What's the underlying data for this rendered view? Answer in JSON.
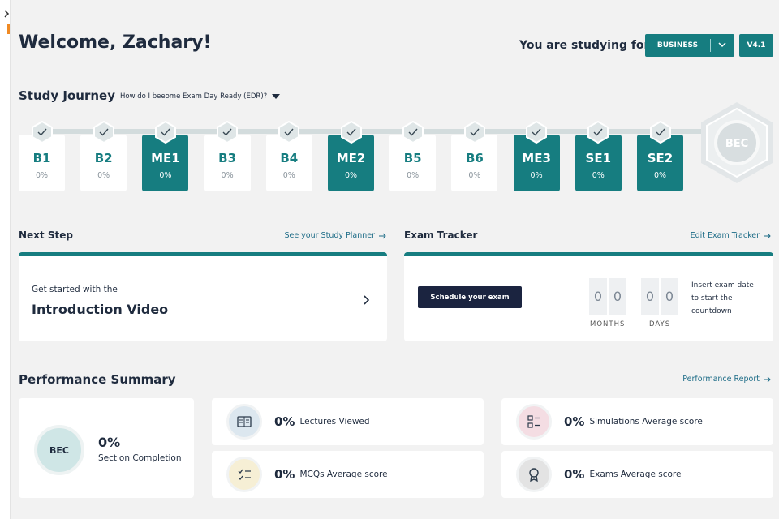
{
  "header": {
    "welcome": "Welcome, Zachary!",
    "studying_label": "You are studying for",
    "section": "BUSINESS",
    "version": "V4.1"
  },
  "journey": {
    "title": "Study Journey",
    "help": "How do I beeome Exam Day Ready (EDR)?",
    "badge": "BEC",
    "steps": [
      {
        "code": "B1",
        "progress": "0%",
        "filled": false
      },
      {
        "code": "B2",
        "progress": "0%",
        "filled": false
      },
      {
        "code": "ME1",
        "progress": "0%",
        "filled": true
      },
      {
        "code": "B3",
        "progress": "0%",
        "filled": false
      },
      {
        "code": "B4",
        "progress": "0%",
        "filled": false
      },
      {
        "code": "ME2",
        "progress": "0%",
        "filled": true
      },
      {
        "code": "B5",
        "progress": "0%",
        "filled": false
      },
      {
        "code": "B6",
        "progress": "0%",
        "filled": false
      },
      {
        "code": "ME3",
        "progress": "0%",
        "filled": true
      },
      {
        "code": "SE1",
        "progress": "0%",
        "filled": true
      },
      {
        "code": "SE2",
        "progress": "0%",
        "filled": true
      }
    ]
  },
  "next_step": {
    "title": "Next Step",
    "link": "See your Study Planner",
    "intro": "Get started with the",
    "item": "Introduction Video"
  },
  "exam_tracker": {
    "title": "Exam Tracker",
    "link": "Edit Exam Tracker",
    "button": "Schedule your exam",
    "months_digits": [
      "0",
      "0"
    ],
    "months_label": "MONTHS",
    "days_digits": [
      "0",
      "0"
    ],
    "days_label": "DAYS",
    "note": "Insert exam date to start the countdown"
  },
  "performance": {
    "title": "Performance Summary",
    "link": "Performance Report",
    "completion": {
      "badge": "BEC",
      "value": "0%",
      "label": "Section Completion"
    },
    "stats": [
      {
        "value": "0%",
        "label": "Lectures Viewed",
        "color": "#dce7ef"
      },
      {
        "value": "0%",
        "label": "Simulations Average score",
        "color": "#f4dde3"
      },
      {
        "value": "0%",
        "label": "MCQs Average score",
        "color": "#f6efd5"
      },
      {
        "value": "0%",
        "label": "Exams Average score",
        "color": "#e3e3e3"
      }
    ]
  }
}
